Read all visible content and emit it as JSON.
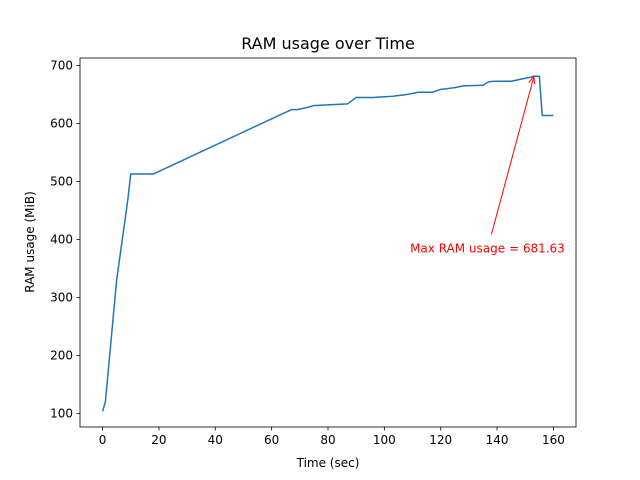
{
  "chart_data": {
    "type": "line",
    "title": "RAM usage over Time",
    "xlabel": "Time (sec)",
    "ylabel": "RAM usage (MiB)",
    "xlim": [
      -8,
      168
    ],
    "ylim": [
      77,
      713
    ],
    "xticks": [
      0,
      20,
      40,
      60,
      80,
      100,
      120,
      140,
      160
    ],
    "yticks": [
      100,
      200,
      300,
      400,
      500,
      600,
      700
    ],
    "grid": false,
    "series": [
      {
        "color": "#1f77b4",
        "x": [
          0,
          1,
          5,
          9,
          10,
          18,
          67,
          69,
          72,
          75,
          79,
          87,
          90,
          96,
          103,
          108,
          112,
          117,
          120,
          122,
          125,
          128,
          135,
          137,
          139,
          145,
          149,
          152,
          153,
          154,
          155,
          156,
          160
        ],
        "y": [
          104,
          120,
          330,
          470,
          513,
          513,
          624,
          624,
          627,
          631,
          632,
          634,
          645,
          645,
          647,
          650,
          654,
          654,
          659,
          660,
          662,
          665,
          666,
          672,
          673,
          673,
          677,
          680,
          681.63,
          681.63,
          681.63,
          614,
          614
        ]
      }
    ],
    "annotation": {
      "text": "Max RAM usage = 681.63",
      "point": [
        153,
        681.63
      ],
      "text_pos": [
        138,
        385
      ],
      "color": "#ff0000"
    }
  }
}
